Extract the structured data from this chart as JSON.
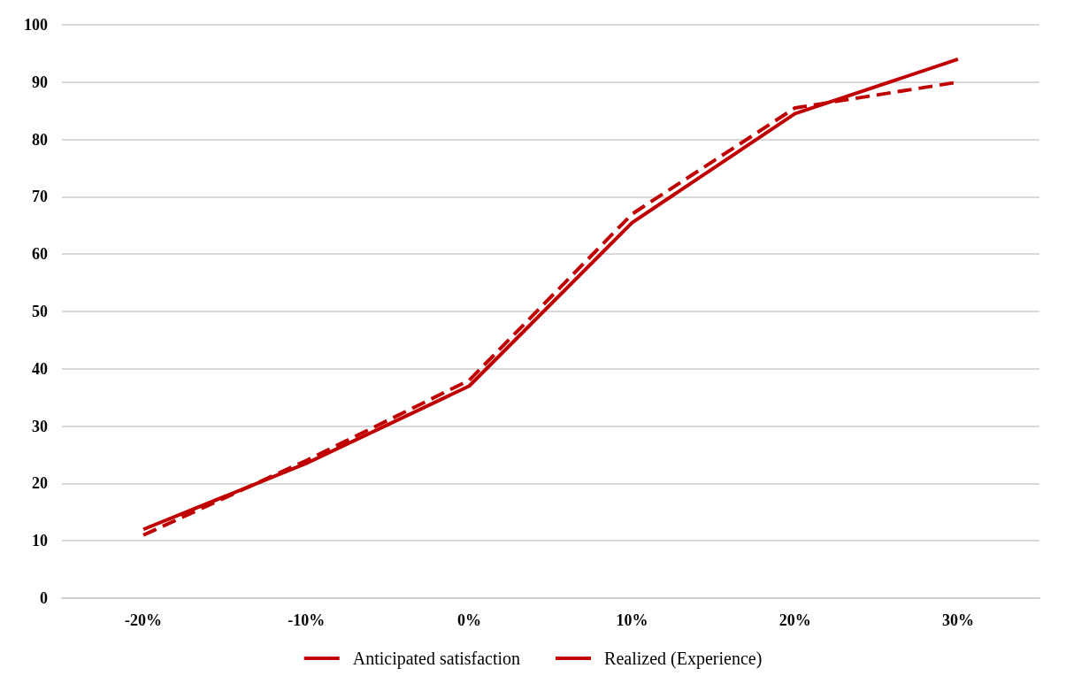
{
  "chart_data": {
    "type": "line",
    "categories": [
      "-20%",
      "-10%",
      "0%",
      "10%",
      "20%",
      "30%"
    ],
    "series": [
      {
        "name": "Anticipated satisfaction",
        "color": "#c00000",
        "line_style": "dashed",
        "values": [
          11,
          24,
          38,
          67,
          85.5,
          90
        ]
      },
      {
        "name": "Realized (Experience)",
        "color": "#c00000",
        "line_style": "solid",
        "values": [
          12,
          23.5,
          37,
          65.5,
          84.5,
          94
        ]
      }
    ],
    "ylim": [
      0,
      100
    ],
    "yticks": [
      0,
      10,
      20,
      30,
      40,
      50,
      60,
      70,
      80,
      90,
      100
    ],
    "grid": "y",
    "legend": "bottom",
    "marker": "none"
  }
}
